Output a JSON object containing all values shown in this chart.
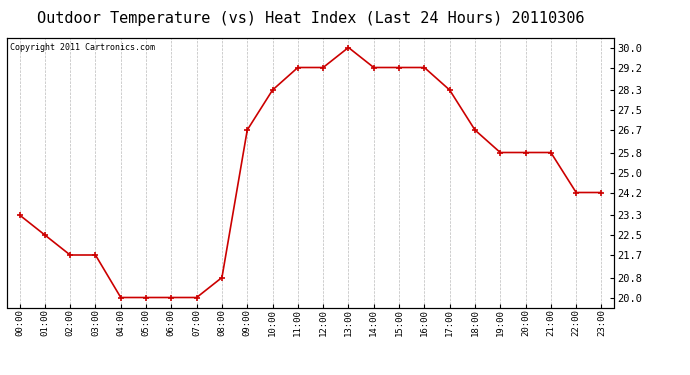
{
  "title": "Outdoor Temperature (vs) Heat Index (Last 24 Hours) 20110306",
  "copyright": "Copyright 2011 Cartronics.com",
  "hours": [
    "00:00",
    "01:00",
    "02:00",
    "03:00",
    "04:00",
    "05:00",
    "06:00",
    "07:00",
    "08:00",
    "09:00",
    "10:00",
    "11:00",
    "12:00",
    "13:00",
    "14:00",
    "15:00",
    "16:00",
    "17:00",
    "18:00",
    "19:00",
    "20:00",
    "21:00",
    "22:00",
    "23:00"
  ],
  "values": [
    23.3,
    22.5,
    21.7,
    21.7,
    20.0,
    20.0,
    20.0,
    20.0,
    20.8,
    26.7,
    28.3,
    29.2,
    29.2,
    30.0,
    29.2,
    29.2,
    29.2,
    28.3,
    26.7,
    25.8,
    25.8,
    25.8,
    24.2,
    24.2
  ],
  "line_color": "#cc0000",
  "marker_color": "#cc0000",
  "background_color": "#ffffff",
  "grid_color": "#bbbbbb",
  "title_fontsize": 11,
  "copyright_fontsize": 6,
  "ytick_fontsize": 7.5,
  "xtick_fontsize": 6.5,
  "yticks": [
    20.0,
    20.8,
    21.7,
    22.5,
    23.3,
    24.2,
    25.0,
    25.8,
    26.7,
    27.5,
    28.3,
    29.2,
    30.0
  ],
  "ylim": [
    19.6,
    30.4
  ],
  "xlim": [
    -0.5,
    23.5
  ]
}
